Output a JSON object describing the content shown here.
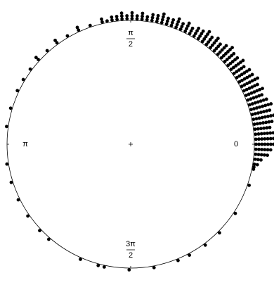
{
  "chart_data": {
    "type": "circular",
    "color": "#000000",
    "ticks": [
      {
        "value": 0,
        "label": [
          "0"
        ]
      },
      {
        "value": 1.5708,
        "label": [
          "π",
          "2"
        ]
      },
      {
        "value": 3.1416,
        "label": [
          "π"
        ]
      },
      {
        "value": 4.7124,
        "label": [
          "3π",
          "2"
        ]
      }
    ],
    "x": [
      -0.2,
      -0.16,
      -0.12,
      -0.08,
      -0.04,
      0.0,
      0.04,
      0.08,
      0.12,
      0.16,
      0.2,
      0.24,
      0.28,
      0.32,
      0.36,
      0.4,
      0.44,
      0.48,
      0.52,
      0.56,
      0.6,
      0.64,
      0.68,
      0.72,
      0.76,
      0.8,
      0.84,
      0.88,
      0.92,
      0.96,
      1.0,
      1.04,
      1.08,
      1.12,
      1.16,
      1.2,
      1.24,
      1.28,
      1.32,
      1.36,
      1.4,
      1.44,
      1.48,
      1.52,
      1.56,
      1.6,
      1.64,
      1.68,
      1.72,
      1.76,
      1.8,
      1.9,
      2.0,
      2.1,
      2.2,
      2.3,
      2.4,
      2.5,
      2.6,
      2.7,
      2.85,
      3.0,
      3.3,
      3.45,
      3.6,
      3.75,
      3.9,
      4.0,
      4.3,
      4.45,
      4.5,
      4.7,
      4.9,
      5.1,
      5.2,
      5.35,
      5.5,
      5.7,
      5.95,
      6.1
    ],
    "values": [
      1,
      2,
      3,
      5,
      6,
      7,
      7,
      7,
      6,
      7,
      8,
      7,
      8,
      7,
      6,
      7,
      6,
      7,
      6,
      6,
      5,
      6,
      5,
      5,
      6,
      5,
      4,
      5,
      4,
      5,
      4,
      4,
      3,
      4,
      3,
      4,
      3,
      3,
      4,
      3,
      3,
      2,
      3,
      2,
      3,
      2,
      3,
      2,
      2,
      1,
      2,
      1,
      2,
      1,
      2,
      1,
      2,
      1,
      1,
      1,
      1,
      1,
      1,
      1,
      1,
      1,
      1,
      1,
      1,
      1,
      1,
      1,
      1,
      1,
      1,
      1,
      1,
      1,
      1,
      1
    ]
  }
}
